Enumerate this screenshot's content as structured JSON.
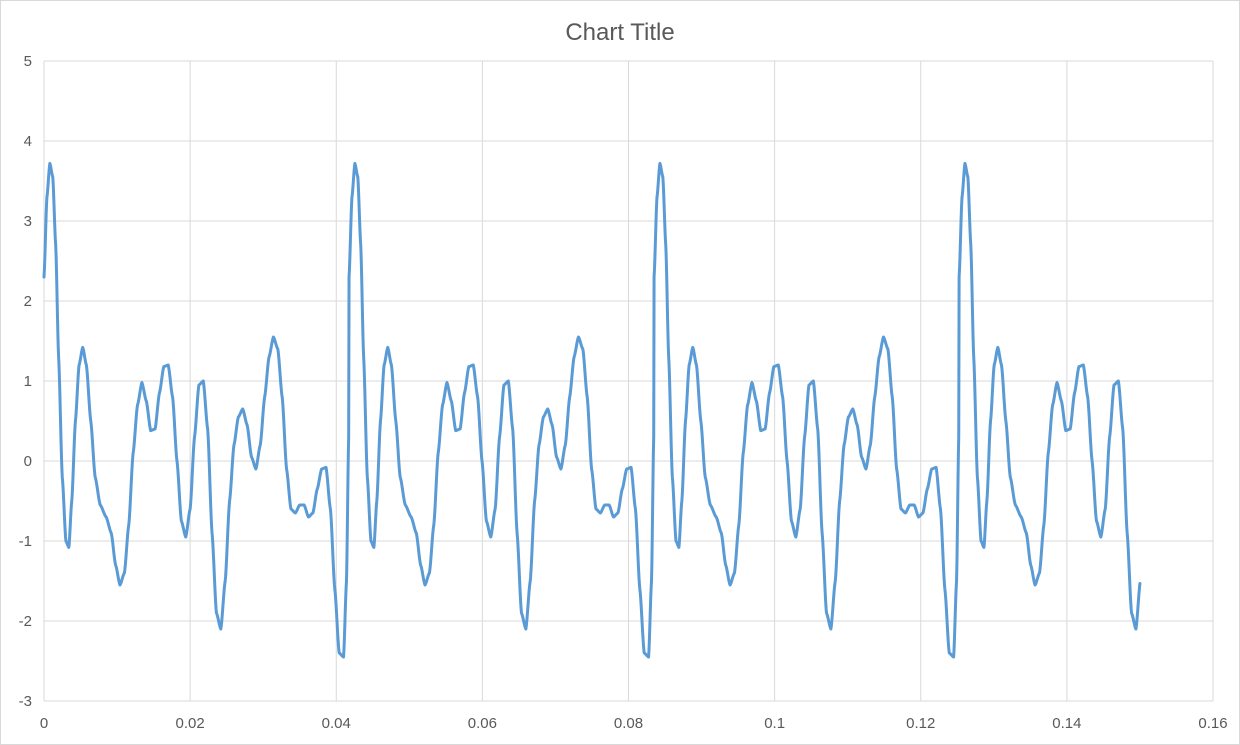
{
  "chart_data": {
    "type": "line",
    "title": "Chart Title",
    "xlabel": "",
    "ylabel": "",
    "xlim": [
      0,
      0.16
    ],
    "ylim": [
      -3,
      5
    ],
    "x_ticks": [
      "0",
      "0.02",
      "0.04",
      "0.06",
      "0.08",
      "0.1",
      "0.12",
      "0.14",
      "0.16"
    ],
    "y_ticks": [
      "5",
      "4",
      "3",
      "2",
      "1",
      "0",
      "-1",
      "-2",
      "-3"
    ],
    "grid": true,
    "legend": "none",
    "series_color": "#5b9bd5",
    "series": [
      {
        "period": 0.04175,
        "x_end": 0.15,
        "points": [
          [
            0.0,
            2.3
          ],
          [
            0.0004,
            3.3
          ],
          [
            0.0008,
            3.72
          ],
          [
            0.0012,
            3.55
          ],
          [
            0.0016,
            2.7
          ],
          [
            0.002,
            1.3
          ],
          [
            0.0025,
            -0.2
          ],
          [
            0.003,
            -1.0
          ],
          [
            0.0034,
            -1.08
          ],
          [
            0.0038,
            -0.5
          ],
          [
            0.0043,
            0.5
          ],
          [
            0.0048,
            1.2
          ],
          [
            0.0053,
            1.42
          ],
          [
            0.0058,
            1.2
          ],
          [
            0.0064,
            0.5
          ],
          [
            0.007,
            -0.2
          ],
          [
            0.0077,
            -0.55
          ],
          [
            0.0085,
            -0.7
          ],
          [
            0.0092,
            -0.9
          ],
          [
            0.0098,
            -1.3
          ],
          [
            0.0104,
            -1.55
          ],
          [
            0.011,
            -1.4
          ],
          [
            0.0116,
            -0.8
          ],
          [
            0.0122,
            0.1
          ],
          [
            0.0128,
            0.7
          ],
          [
            0.0134,
            0.98
          ],
          [
            0.014,
            0.75
          ],
          [
            0.0146,
            0.38
          ],
          [
            0.0152,
            0.4
          ],
          [
            0.0158,
            0.85
          ],
          [
            0.0164,
            1.18
          ],
          [
            0.017,
            1.2
          ],
          [
            0.0176,
            0.8
          ],
          [
            0.0182,
            0.0
          ],
          [
            0.0188,
            -0.75
          ],
          [
            0.0194,
            -0.95
          ],
          [
            0.02,
            -0.6
          ],
          [
            0.0206,
            0.3
          ],
          [
            0.0212,
            0.95
          ],
          [
            0.0218,
            1.0
          ],
          [
            0.0224,
            0.4
          ],
          [
            0.023,
            -0.9
          ],
          [
            0.0236,
            -1.9
          ],
          [
            0.0242,
            -2.1
          ],
          [
            0.0248,
            -1.5
          ],
          [
            0.0254,
            -0.5
          ],
          [
            0.026,
            0.2
          ],
          [
            0.0266,
            0.55
          ],
          [
            0.0272,
            0.65
          ],
          [
            0.0278,
            0.45
          ],
          [
            0.0284,
            0.05
          ],
          [
            0.029,
            -0.1
          ],
          [
            0.0296,
            0.2
          ],
          [
            0.0302,
            0.8
          ],
          [
            0.0308,
            1.3
          ],
          [
            0.0314,
            1.55
          ],
          [
            0.032,
            1.4
          ],
          [
            0.0326,
            0.8
          ],
          [
            0.0332,
            -0.1
          ],
          [
            0.0338,
            -0.6
          ],
          [
            0.0344,
            -0.65
          ],
          [
            0.035,
            -0.55
          ],
          [
            0.0356,
            -0.55
          ],
          [
            0.0362,
            -0.7
          ],
          [
            0.0368,
            -0.65
          ],
          [
            0.0374,
            -0.35
          ],
          [
            0.038,
            -0.1
          ],
          [
            0.0386,
            -0.08
          ],
          [
            0.0392,
            -0.6
          ],
          [
            0.0398,
            -1.6
          ],
          [
            0.0404,
            -2.4
          ],
          [
            0.041,
            -2.45
          ],
          [
            0.0414,
            -1.5
          ],
          [
            0.0417,
            0.3
          ],
          [
            0.04175,
            2.3
          ]
        ]
      }
    ]
  }
}
